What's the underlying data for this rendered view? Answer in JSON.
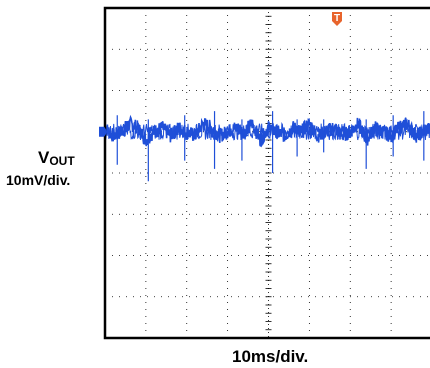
{
  "chart_data": {
    "type": "line",
    "title": "",
    "channel": {
      "name_main": "V",
      "name_sub": "OUT",
      "scale": "10mV/div."
    },
    "timebase": "10ms/div.",
    "grid": {
      "on": true,
      "h_divisions": 8,
      "v_divisions": 8
    },
    "xlim": [
      0,
      80
    ],
    "ylim": [
      -50,
      30
    ],
    "x_unit": "ms",
    "y_unit": "mV",
    "trigger_marker": "T",
    "series": [
      {
        "color": "#1f4fd8",
        "description_level_mV": 0,
        "x": [
          0,
          2,
          4,
          6,
          8,
          10,
          12,
          14,
          16,
          18,
          20,
          22,
          24,
          26,
          28,
          30,
          32,
          34,
          36,
          38,
          40,
          42,
          44,
          46,
          48,
          50,
          52,
          54,
          56,
          58,
          60,
          62,
          64,
          66,
          68,
          70,
          72,
          74,
          76,
          78,
          80
        ],
        "y": [
          1,
          -1,
          0,
          2,
          1,
          -2,
          0,
          1,
          -1,
          1,
          0,
          -1,
          2,
          1,
          -1,
          0,
          1,
          0,
          2,
          -2,
          1,
          0,
          -1,
          1,
          0,
          2,
          -1,
          0,
          1,
          -1,
          0,
          2,
          -2,
          1,
          0,
          -1,
          1,
          2,
          -1,
          0,
          1
        ]
      }
    ],
    "spikes": [
      {
        "x": 3.0,
        "y_min": -8,
        "y_max": 4
      },
      {
        "x": 10.6,
        "y_min": -12,
        "y_max": 3
      },
      {
        "x": 19.5,
        "y_min": -7,
        "y_max": 4
      },
      {
        "x": 26.8,
        "y_min": -9,
        "y_max": 5
      },
      {
        "x": 33.5,
        "y_min": -7,
        "y_max": 3
      },
      {
        "x": 41.0,
        "y_min": -10,
        "y_max": 5
      },
      {
        "x": 47.0,
        "y_min": -6,
        "y_max": 3
      },
      {
        "x": 53.5,
        "y_min": -5,
        "y_max": 3
      },
      {
        "x": 63.9,
        "y_min": -9,
        "y_max": 3
      },
      {
        "x": 70.5,
        "y_min": -6,
        "y_max": 4
      },
      {
        "x": 78.0,
        "y_min": -7,
        "y_max": 5
      }
    ],
    "colors": {
      "trace": "#1f4fd8",
      "trigger": "#e8642c",
      "grid": "#000000"
    }
  }
}
